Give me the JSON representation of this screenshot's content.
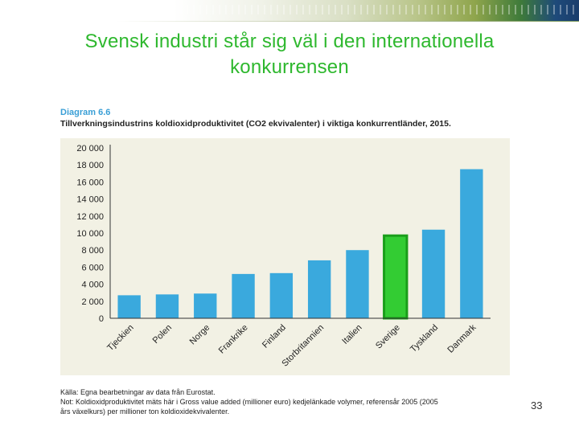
{
  "slide": {
    "title_line1": "Svensk industri står sig väl i den internationella",
    "title_line2": "konkurrensen",
    "page_number": "33"
  },
  "diagram": {
    "label": "Diagram 6.6",
    "subtitle": "Tillverkningsindustrins koldioxidproduktivitet (CO2 ekvivalenter) i viktiga konkurrentländer, 2015.",
    "source_line1": "Källa: Egna bearbetningar av data från Eurostat.",
    "source_line2": "Not: Koldioxidproduktivitet mäts här i Gross value added (millioner euro) kedjelänkade volymer, referensår 2005 (2005",
    "source_line3": "års växelkurs) per millioner ton koldioxidekvivalenter."
  },
  "colors": {
    "bar": "#3aa9dd",
    "highlight_fill": "#33cc33",
    "highlight_border": "#1a9e1a",
    "axis": "#333333",
    "title": "#2eb82e"
  },
  "chart_data": {
    "type": "bar",
    "title": "Tillverkningsindustrins koldioxidproduktivitet (CO2 ekvivalenter) i viktiga konkurrentländer, 2015.",
    "xlabel": "",
    "ylabel": "",
    "categories": [
      "Tjeckien",
      "Polen",
      "Norge",
      "Frankrike",
      "Finland",
      "Storbritannien",
      "Italien",
      "Sverige",
      "Tyskland",
      "Danmark"
    ],
    "values": [
      2700,
      2800,
      2900,
      5200,
      5300,
      6800,
      8000,
      9700,
      10400,
      17500
    ],
    "highlight": "Sverige",
    "ylim": [
      0,
      20000
    ],
    "yticks": [
      0,
      2000,
      4000,
      6000,
      8000,
      10000,
      12000,
      14000,
      16000,
      18000,
      20000
    ],
    "ytick_labels": [
      "0",
      "2 000",
      "4 000",
      "6 000",
      "8 000",
      "10 000",
      "12 000",
      "14 000",
      "16 000",
      "18 000",
      "20 000"
    ],
    "grid": false
  }
}
